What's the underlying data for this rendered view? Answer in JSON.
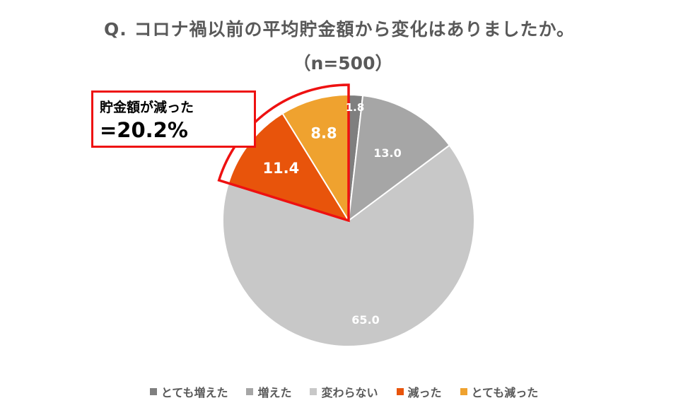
{
  "chart_data": {
    "type": "pie",
    "title": "Q. コロナ禍以前の平均貯金額から変化はありましたか。",
    "subtitle": "（n=500）",
    "categories": [
      "とても増えた",
      "増えた",
      "変わらない",
      "減った",
      "とても減った"
    ],
    "values": [
      1.8,
      13.0,
      65.0,
      11.4,
      8.8
    ],
    "value_labels": [
      "1.8",
      "13.0",
      "65.0",
      "11.4",
      "8.8"
    ],
    "colors": [
      "#7f7f7f",
      "#a6a6a6",
      "#c8c8c8",
      "#e8540b",
      "#efa22f"
    ],
    "label_colors": [
      "#ffffff",
      "#ffffff",
      "#ffffff",
      "#ffffff",
      "#ffffff"
    ],
    "legend_position": "bottom",
    "start_angle": "top, clockwise",
    "highlight": {
      "categories": [
        "減った",
        "とても減った"
      ],
      "outline_color": "#ee1111",
      "callout_title": "貯金額が減った",
      "callout_value": "=20.2%"
    }
  }
}
